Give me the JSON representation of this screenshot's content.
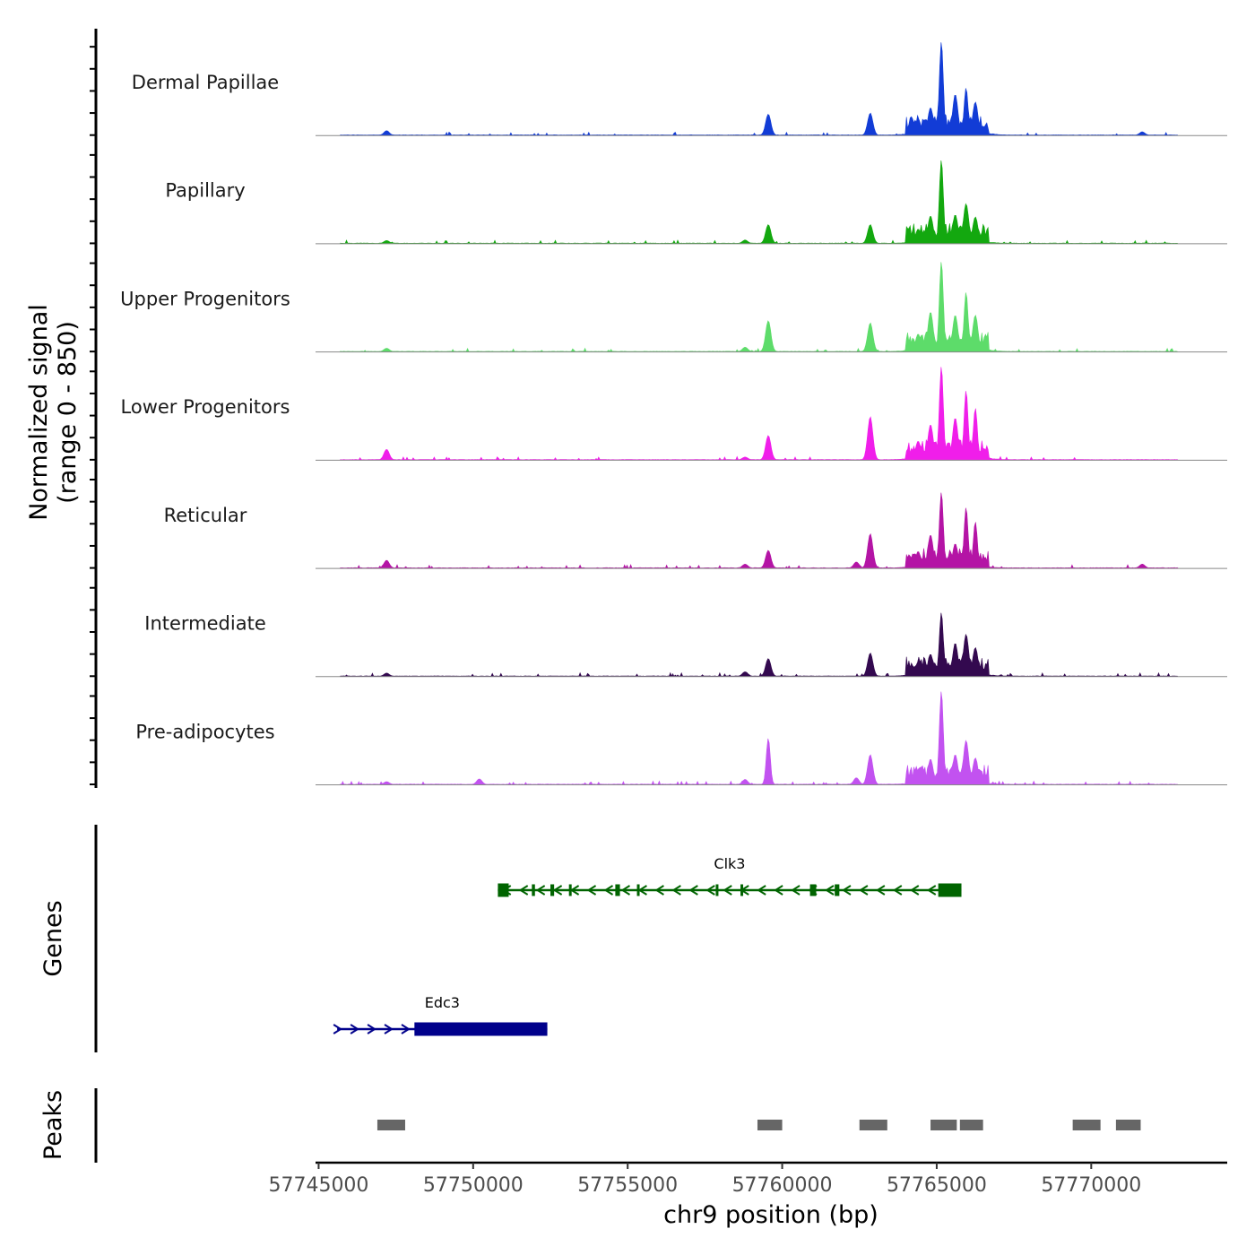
{
  "chart_data": {
    "type": "area",
    "title": "",
    "ylabel_line1": "Normalized signal",
    "ylabel_line2": "(range 0 - 850)",
    "ylim": [
      0,
      850
    ],
    "xlabel": "chr9 position (bp)",
    "xlim": [
      57744900,
      57774400
    ],
    "x_ticks": [
      57745000,
      57750000,
      57755000,
      57760000,
      57765000,
      57770000
    ],
    "x_tick_labels": [
      "57745000",
      "57750000",
      "57755000",
      "57760000",
      "57765000",
      "57770000"
    ],
    "series": [
      {
        "name": "Dermal Papillae",
        "color": "#123cd6"
      },
      {
        "name": "Papillary",
        "color": "#13a80f"
      },
      {
        "name": "Upper Progenitors",
        "color": "#5ddc6a"
      },
      {
        "name": "Lower Progenitors",
        "color": "#f01eea"
      },
      {
        "name": "Reticular",
        "color": "#b414a5"
      },
      {
        "name": "Intermediate",
        "color": "#33094f"
      },
      {
        "name": "Pre-adipocytes",
        "color": "#c252f0"
      }
    ],
    "signal_peaks": [
      {
        "pos": 57747200,
        "heights": [
          40,
          25,
          30,
          95,
          70,
          28,
          25
        ]
      },
      {
        "pos": 57750200,
        "heights": [
          0,
          0,
          0,
          0,
          0,
          0,
          50
        ]
      },
      {
        "pos": 57758800,
        "heights": [
          0,
          30,
          40,
          25,
          35,
          40,
          45
        ]
      },
      {
        "pos": 57759550,
        "heights": [
          190,
          170,
          280,
          220,
          160,
          160,
          420
        ]
      },
      {
        "pos": 57762400,
        "heights": [
          0,
          0,
          0,
          0,
          55,
          0,
          60
        ]
      },
      {
        "pos": 57762850,
        "heights": [
          200,
          170,
          260,
          390,
          310,
          210,
          270
        ]
      },
      {
        "pos": 57764400,
        "heights": [
          150,
          130,
          160,
          170,
          150,
          130,
          130
        ]
      },
      {
        "pos": 57764800,
        "heights": [
          250,
          250,
          360,
          320,
          300,
          200,
          230
        ]
      },
      {
        "pos": 57765150,
        "heights": [
          850,
          760,
          820,
          850,
          690,
          580,
          850
        ]
      },
      {
        "pos": 57765600,
        "heights": [
          370,
          260,
          330,
          380,
          220,
          300,
          270
        ]
      },
      {
        "pos": 57765950,
        "heights": [
          430,
          360,
          540,
          630,
          550,
          380,
          400
        ]
      },
      {
        "pos": 57766250,
        "heights": [
          300,
          240,
          330,
          470,
          420,
          260,
          240
        ]
      },
      {
        "pos": 57771650,
        "heights": [
          30,
          0,
          0,
          0,
          35,
          0,
          0
        ]
      }
    ],
    "genes": [
      {
        "name": "Clk3",
        "strand": "-",
        "start": 57750800,
        "end": 57765800,
        "color": "#006400",
        "exons": [
          [
            57750800,
            57751150
          ],
          [
            57751900,
            57752000
          ],
          [
            57752500,
            57752620
          ],
          [
            57753100,
            57753180
          ],
          [
            57754600,
            57754750
          ],
          [
            57755300,
            57755380
          ],
          [
            57757850,
            57757930
          ],
          [
            57758650,
            57758720
          ],
          [
            57760900,
            57761100
          ],
          [
            57761700,
            57761850
          ],
          [
            57765050,
            57765800
          ]
        ]
      },
      {
        "name": "Edc3",
        "strand": "+",
        "start": 57745600,
        "end": 57752400,
        "color": "#00008b",
        "exons": [
          [
            57748100,
            57752400
          ]
        ]
      }
    ],
    "peaks": [
      [
        57746900,
        57747800
      ],
      [
        57759200,
        57760000
      ],
      [
        57762500,
        57763400
      ],
      [
        57764800,
        57765650
      ],
      [
        57765750,
        57766500
      ],
      [
        57769400,
        57770300
      ],
      [
        57770800,
        57771600
      ]
    ],
    "panel_titles": {
      "genes": "Genes",
      "peaks": "Peaks"
    }
  }
}
